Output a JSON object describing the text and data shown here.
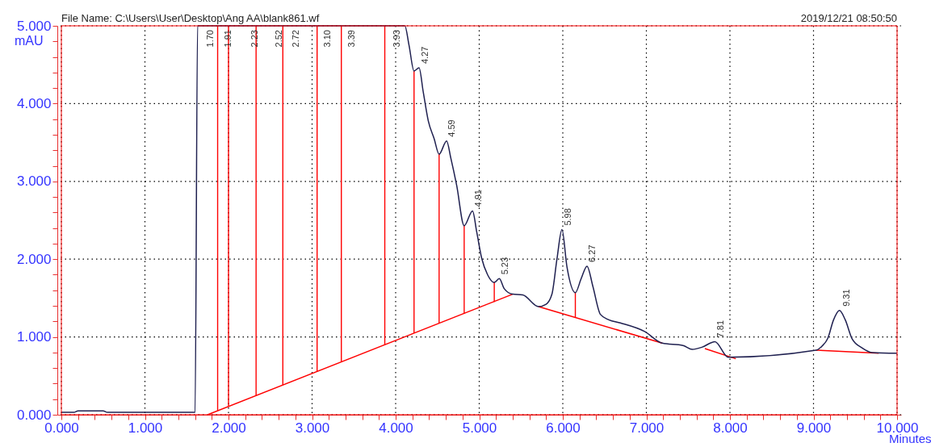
{
  "chart_data": {
    "type": "line",
    "xlabel": "Minutes",
    "ylabel": "mAU",
    "annotations": [
      "File Name: C:\\Users\\User\\Desktop\\Ang AA\\blank861.wf",
      "2019/12/21 08:50:50",
      {
        "text": "1.70",
        "x": 1.7,
        "y": 5.0
      },
      {
        "text": "1.91",
        "x": 1.91,
        "y": 5.0
      },
      {
        "text": "2.23",
        "x": 2.23,
        "y": 5.0
      },
      {
        "text": "2.52",
        "x": 2.52,
        "y": 5.0
      },
      {
        "text": "2.72",
        "x": 2.72,
        "y": 5.0
      },
      {
        "text": "3.10",
        "x": 3.1,
        "y": 5.0
      },
      {
        "text": "3.39",
        "x": 3.39,
        "y": 5.0
      },
      {
        "text": "3.93",
        "x": 3.93,
        "y": 5.0
      },
      {
        "text": "4.27",
        "x": 4.27,
        "y": 4.46
      },
      {
        "text": "4.59",
        "x": 4.59,
        "y": 3.52
      },
      {
        "text": "4.91",
        "x": 4.91,
        "y": 2.62
      },
      {
        "text": "5.23",
        "x": 5.23,
        "y": 1.75
      },
      {
        "text": "5.98",
        "x": 5.98,
        "y": 2.38
      },
      {
        "text": "6.27",
        "x": 6.27,
        "y": 1.91
      },
      {
        "text": "7.81",
        "x": 7.81,
        "y": 0.94
      },
      {
        "text": "9.31",
        "x": 9.31,
        "y": 1.34
      }
    ],
    "series": [
      {
        "color": "#1f2050",
        "x": [
          0,
          0.15,
          0.2,
          0.5,
          0.55,
          1.6,
          1.63,
          4.11,
          4.16,
          4.22,
          4.28,
          4.33,
          4.39,
          4.46,
          4.52,
          4.61,
          4.66,
          4.73,
          4.82,
          4.92,
          4.97,
          5.03,
          5.1,
          5.18,
          5.24,
          5.3,
          5.4,
          5.52,
          5.71,
          5.8,
          5.87,
          5.93,
          5.99,
          6.05,
          6.15,
          6.22,
          6.29,
          6.36,
          6.45,
          6.55,
          6.69,
          6.98,
          7.19,
          7.44,
          7.55,
          7.67,
          7.82,
          7.98,
          9.03,
          9.1,
          9.17,
          9.24,
          9.31,
          9.38,
          9.46,
          9.58,
          9.7,
          10.0
        ],
        "values": [
          0.03,
          0.03,
          0.05,
          0.05,
          0.03,
          0.03,
          5.0,
          5.0,
          4.75,
          4.42,
          4.46,
          4.15,
          3.78,
          3.55,
          3.35,
          3.52,
          3.3,
          2.95,
          2.43,
          2.62,
          2.35,
          2.01,
          1.8,
          1.7,
          1.75,
          1.62,
          1.55,
          1.54,
          1.39,
          1.42,
          1.55,
          2.0,
          2.38,
          1.9,
          1.57,
          1.75,
          1.91,
          1.65,
          1.29,
          1.22,
          1.18,
          1.07,
          0.92,
          0.89,
          0.84,
          0.87,
          0.94,
          0.74,
          0.83,
          0.88,
          0.98,
          1.22,
          1.34,
          1.22,
          0.98,
          0.86,
          0.8,
          0.79
        ]
      },
      {
        "color": "#ff0000",
        "x": [
          1.75,
          5.4
        ],
        "values": [
          0,
          1.55
        ]
      },
      {
        "color": "#ff0000",
        "x": [
          5.71,
          7.19
        ],
        "values": [
          1.39,
          0.92
        ]
      },
      {
        "color": "#ff0000",
        "x": [
          7.7,
          8.07
        ],
        "values": [
          0.85,
          0.72
        ]
      },
      {
        "color": "#ff0000",
        "x": [
          9.03,
          9.78
        ],
        "values": [
          0.83,
          0.79
        ]
      },
      {
        "type": "bar",
        "color": "#ff0000",
        "x": [
          1.87,
          2.0,
          2.33,
          2.65,
          3.06,
          3.35,
          3.87,
          4.22,
          4.52,
          4.82,
          5.18,
          6.15
        ],
        "base": [
          0.05,
          0.11,
          0.25,
          0.38,
          0.56,
          0.68,
          0.9,
          1.05,
          1.18,
          1.3,
          1.45,
          1.25
        ],
        "values": [
          4.95,
          4.89,
          4.75,
          4.62,
          4.44,
          4.32,
          4.1,
          3.37,
          2.17,
          1.13,
          0.25,
          0.32
        ]
      }
    ],
    "xlim": [
      0,
      10
    ],
    "ylim": [
      0,
      5
    ],
    "xticks": [
      {
        "value": 0,
        "label": "0.000"
      },
      {
        "value": 0.2,
        "label": null
      },
      {
        "value": 0.4,
        "label": null
      },
      {
        "value": 0.6,
        "label": null
      },
      {
        "value": 0.8,
        "label": null
      },
      {
        "value": 1,
        "label": "1.000"
      },
      {
        "value": 1.2,
        "label": null
      },
      {
        "value": 1.4,
        "label": null
      },
      {
        "value": 1.6,
        "label": null
      },
      {
        "value": 1.8,
        "label": null
      },
      {
        "value": 2,
        "label": "2.000"
      },
      {
        "value": 2.2,
        "label": null
      },
      {
        "value": 2.4,
        "label": null
      },
      {
        "value": 2.6,
        "label": null
      },
      {
        "value": 2.8,
        "label": null
      },
      {
        "value": 3,
        "label": "3.000"
      },
      {
        "value": 3.2,
        "label": null
      },
      {
        "value": 3.4,
        "label": null
      },
      {
        "value": 3.6,
        "label": null
      },
      {
        "value": 3.8,
        "label": null
      },
      {
        "value": 4,
        "label": "4.000"
      },
      {
        "value": 4.2,
        "label": null
      },
      {
        "value": 4.4,
        "label": null
      },
      {
        "value": 4.6,
        "label": null
      },
      {
        "value": 4.8,
        "label": null
      },
      {
        "value": 5,
        "label": "5.000"
      },
      {
        "value": 5.2,
        "label": null
      },
      {
        "value": 5.4,
        "label": null
      },
      {
        "value": 5.6,
        "label": null
      },
      {
        "value": 5.8,
        "label": null
      },
      {
        "value": 6,
        "label": "6.000"
      },
      {
        "value": 6.2,
        "label": null
      },
      {
        "value": 6.4,
        "label": null
      },
      {
        "value": 6.6,
        "label": null
      },
      {
        "value": 6.8,
        "label": null
      },
      {
        "value": 7,
        "label": "7.000"
      },
      {
        "value": 7.2,
        "label": null
      },
      {
        "value": 7.4,
        "label": null
      },
      {
        "value": 7.6,
        "label": null
      },
      {
        "value": 7.8,
        "label": null
      },
      {
        "value": 8,
        "label": "8.000"
      },
      {
        "value": 8.2,
        "label": null
      },
      {
        "value": 8.4,
        "label": null
      },
      {
        "value": 8.6,
        "label": null
      },
      {
        "value": 8.8,
        "label": null
      },
      {
        "value": 9,
        "label": "9.000"
      },
      {
        "value": 9.2,
        "label": null
      },
      {
        "value": 9.4,
        "label": null
      },
      {
        "value": 9.6,
        "label": null
      },
      {
        "value": 9.8,
        "label": null
      },
      {
        "value": 10,
        "label": "10.000"
      }
    ],
    "yticks": [
      {
        "value": 0,
        "label": "0.000"
      },
      {
        "value": 0.2,
        "label": null
      },
      {
        "value": 0.4,
        "label": null
      },
      {
        "value": 0.6,
        "label": null
      },
      {
        "value": 0.8,
        "label": null
      },
      {
        "value": 1,
        "label": "1.000"
      },
      {
        "value": 1.2,
        "label": null
      },
      {
        "value": 1.4,
        "label": null
      },
      {
        "value": 1.6,
        "label": null
      },
      {
        "value": 1.8,
        "label": null
      },
      {
        "value": 2,
        "label": "2.000"
      },
      {
        "value": 2.2,
        "label": null
      },
      {
        "value": 2.4,
        "label": null
      },
      {
        "value": 2.6,
        "label": null
      },
      {
        "value": 2.8,
        "label": null
      },
      {
        "value": 3,
        "label": "3.000"
      },
      {
        "value": 3.2,
        "label": null
      },
      {
        "value": 3.4,
        "label": null
      },
      {
        "value": 3.6,
        "label": null
      },
      {
        "value": 3.8,
        "label": null
      },
      {
        "value": 4,
        "label": "4.000"
      },
      {
        "value": 4.2,
        "label": null
      },
      {
        "value": 4.4,
        "label": null
      },
      {
        "value": 4.6,
        "label": null
      },
      {
        "value": 4.8,
        "label": null
      },
      {
        "value": 5,
        "label": "5.000"
      }
    ],
    "grid": true
  }
}
